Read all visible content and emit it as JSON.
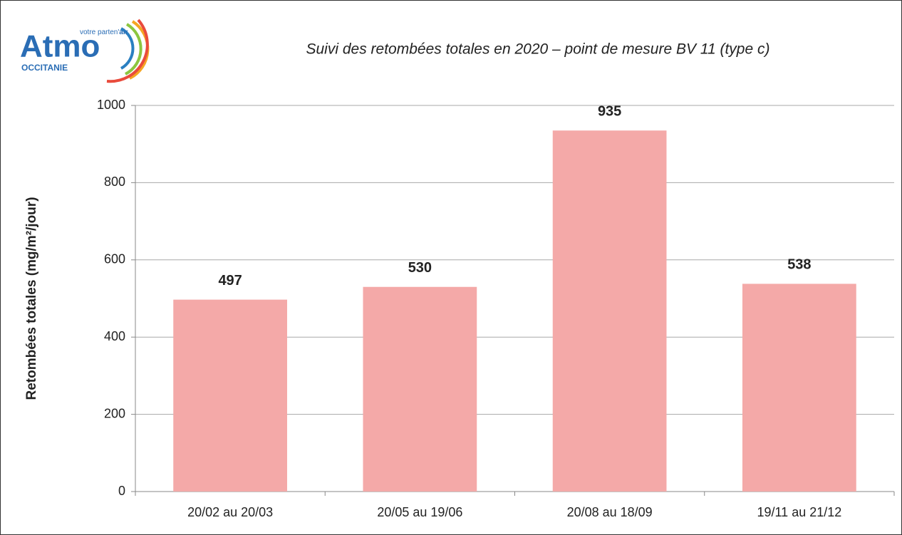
{
  "chart_data": {
    "type": "bar",
    "title": "Suivi des retombées totales en 2020 – point de mesure BV 11 (type c)",
    "logo": {
      "name": "Atmo",
      "tagline": "votre parten'",
      "tagline_bold": "air",
      "region": "OCCITANIE"
    },
    "ylabel": "Retombées totales (mg/m²/jour)",
    "categories": [
      "20/02 au 20/03",
      "20/05 au 19/06",
      "20/08 au 18/09",
      "19/11 au 21/12"
    ],
    "values": [
      497,
      530,
      935,
      538
    ],
    "color": "#f4a9a8",
    "ylim": [
      0,
      1000
    ],
    "yticks": [
      0,
      200,
      400,
      600,
      800,
      1000
    ],
    "grid": true
  }
}
